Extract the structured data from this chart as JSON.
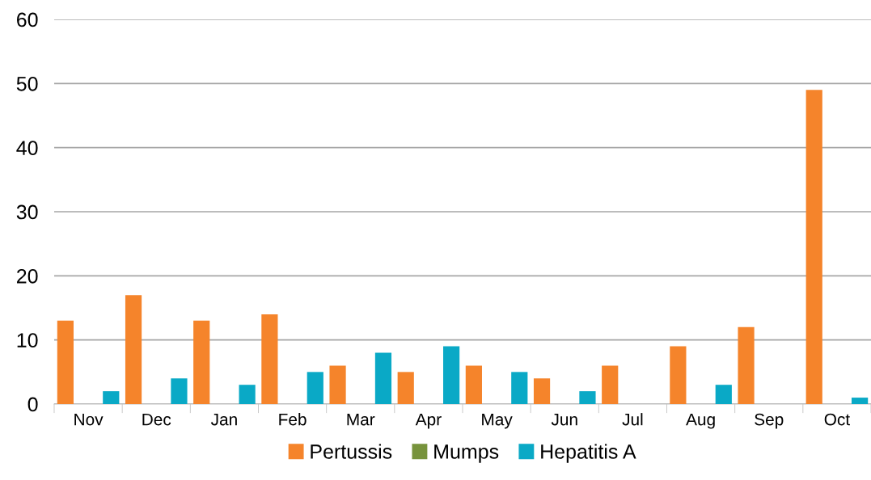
{
  "chart_data": {
    "type": "bar",
    "categories": [
      "Nov",
      "Dec",
      "Jan",
      "Feb",
      "Mar",
      "Apr",
      "May",
      "Jun",
      "Jul",
      "Aug",
      "Sep",
      "Oct"
    ],
    "series": [
      {
        "name": "Pertussis",
        "color": "#f5842b",
        "values": [
          13,
          17,
          13,
          14,
          6,
          5,
          6,
          4,
          6,
          9,
          12,
          49
        ]
      },
      {
        "name": "Mumps",
        "color": "#77933c",
        "values": [
          0,
          0,
          0,
          0,
          0,
          0,
          0,
          0,
          0,
          0,
          0,
          0
        ]
      },
      {
        "name": "Hepatitis A",
        "color": "#0aa9c6",
        "values": [
          2,
          4,
          3,
          5,
          8,
          9,
          5,
          2,
          0,
          3,
          0,
          1
        ]
      }
    ],
    "ylim": [
      0,
      60
    ],
    "yticks": [
      0,
      10,
      20,
      30,
      40,
      50,
      60
    ],
    "grid": "y",
    "legend": "bottom"
  }
}
